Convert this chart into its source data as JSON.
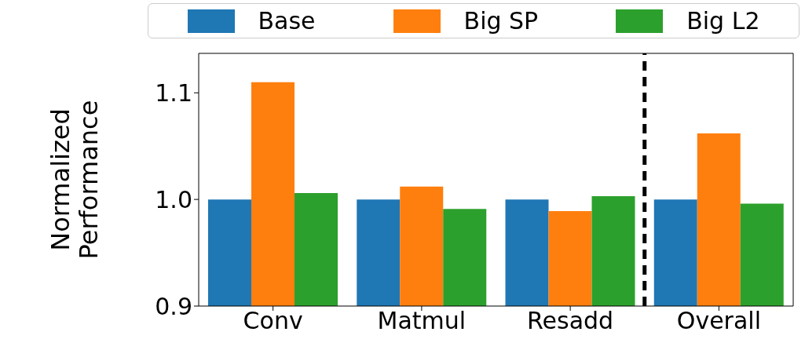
{
  "chart_data": {
    "type": "bar",
    "ylabel": "Normalized Performance",
    "categories": [
      "Conv",
      "Matmul",
      "Resadd",
      "Overall"
    ],
    "series": [
      {
        "name": "Base",
        "color": "#1f77b4",
        "values": [
          1.0,
          1.0,
          1.0,
          1.0
        ]
      },
      {
        "name": "Big SP",
        "color": "#ff7f0e",
        "values": [
          1.11,
          1.012,
          0.989,
          1.062
        ]
      },
      {
        "name": "Big L2",
        "color": "#2ca02c",
        "values": [
          1.006,
          0.991,
          1.003,
          0.996
        ]
      }
    ],
    "ylim": [
      0.9,
      1.137
    ],
    "yticks": [
      0.9,
      {
        "value": 1.0,
        "label": "1.0"
      },
      1.1
    ],
    "grid": false,
    "legend": "top"
  }
}
